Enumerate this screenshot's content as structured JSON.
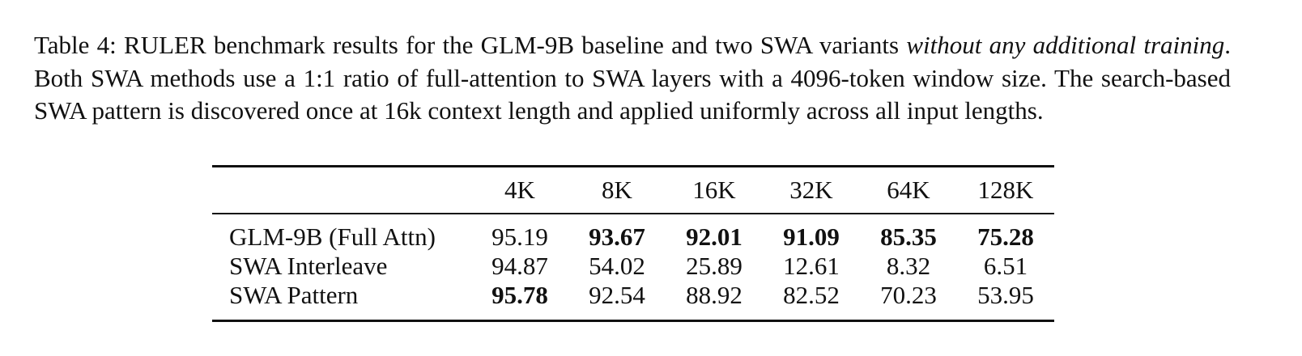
{
  "caption": [
    {
      "text": "Table 4: RULER benchmark results for the GLM-9B baseline and two SWA variants ",
      "italic": false
    },
    {
      "text": "without any additional training",
      "italic": true
    },
    {
      "text": ".  Both SWA methods use a 1:1 ratio of full-attention to SWA layers with a 4096-token window size. The search-based SWA pattern is discovered once at 16k context length and applied uniformly across all input lengths.",
      "italic": false
    }
  ],
  "table": {
    "header": [
      "4K",
      "8K",
      "16K",
      "32K",
      "64K",
      "128K"
    ],
    "rows": [
      {
        "label": "GLM-9B (Full Attn)",
        "cells": [
          95.19,
          93.67,
          92.01,
          91.09,
          85.35,
          75.28
        ],
        "bold": [
          false,
          true,
          true,
          true,
          true,
          true
        ]
      },
      {
        "label": "SWA Interleave",
        "cells": [
          94.87,
          54.02,
          25.89,
          12.61,
          8.32,
          6.51
        ],
        "bold": [
          false,
          false,
          false,
          false,
          false,
          false
        ]
      },
      {
        "label": "SWA Pattern",
        "cells": [
          95.78,
          92.54,
          88.92,
          82.52,
          70.23,
          53.95
        ],
        "bold": [
          true,
          false,
          false,
          false,
          false,
          false
        ]
      }
    ]
  }
}
